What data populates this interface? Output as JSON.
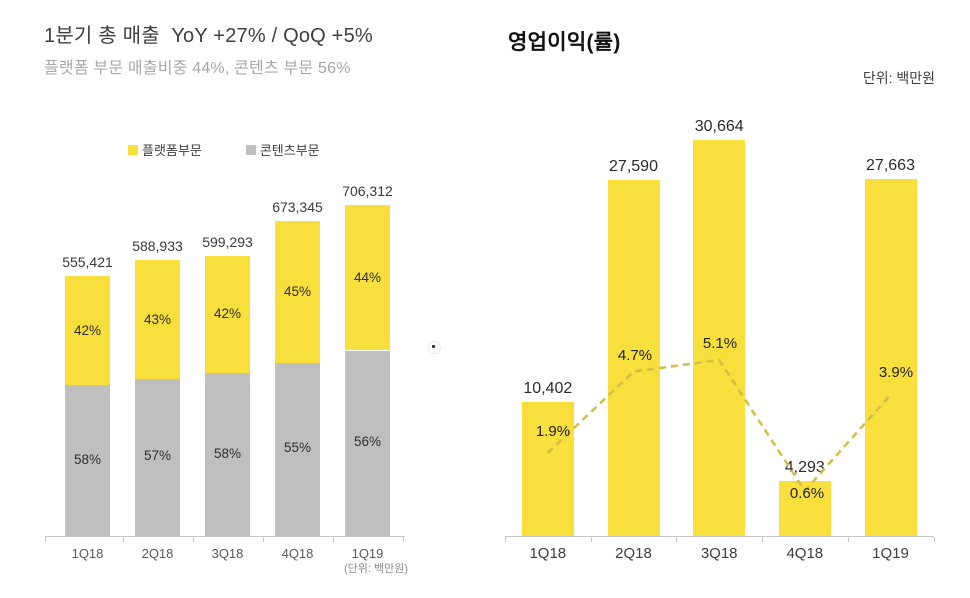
{
  "revenue": {
    "title": "1분기 총 매출  YoY +27% / QoQ +5%",
    "subtitle": "플랫폼 부문 매출비중 44%, 콘텐츠 부문 56%",
    "legend": {
      "platform": "플랫폼부문",
      "content": "콘텐츠부문"
    },
    "unit_note": "(단위: 백만원)",
    "chart_data": {
      "type": "bar",
      "stacked": true,
      "categories": [
        "1Q18",
        "2Q18",
        "3Q18",
        "4Q18",
        "1Q19"
      ],
      "totals": [
        555421,
        588933,
        599293,
        673345,
        706312
      ],
      "total_labels": [
        "555,421",
        "588,933",
        "599,293",
        "673,345",
        "706,312"
      ],
      "series": [
        {
          "name": "플랫폼부문",
          "color": "#F8DF3B",
          "pct": [
            42,
            43,
            42,
            45,
            44
          ],
          "pct_labels": [
            "42%",
            "43%",
            "42%",
            "45%",
            "44%"
          ]
        },
        {
          "name": "콘텐츠부문",
          "color": "#BFBFBF",
          "pct": [
            58,
            57,
            58,
            55,
            56
          ],
          "pct_labels": [
            "58%",
            "57%",
            "58%",
            "55%",
            "56%"
          ]
        }
      ],
      "unit": "백만원",
      "legend_position": "top",
      "grid": false
    }
  },
  "profit": {
    "title": "영업이익(률)",
    "unit_label": "단위: 백만원",
    "chart_data": {
      "type": "bar",
      "categories": [
        "1Q18",
        "2Q18",
        "3Q18",
        "4Q18",
        "1Q19"
      ],
      "bar_series": {
        "name": "영업이익",
        "color": "#F8DF3B",
        "values": [
          10402,
          27590,
          30664,
          4293,
          27663
        ],
        "labels": [
          "10,402",
          "27,590",
          "30,664",
          "4,293",
          "27,663"
        ]
      },
      "line_series": {
        "name": "영업이익률",
        "style": "dashed",
        "color": "#D2BE45",
        "values": [
          1.9,
          4.7,
          5.1,
          0.6,
          3.9
        ],
        "labels": [
          "1.9%",
          "4.7%",
          "5.1%",
          "0.6%",
          "3.9%"
        ]
      },
      "grid": false
    }
  }
}
